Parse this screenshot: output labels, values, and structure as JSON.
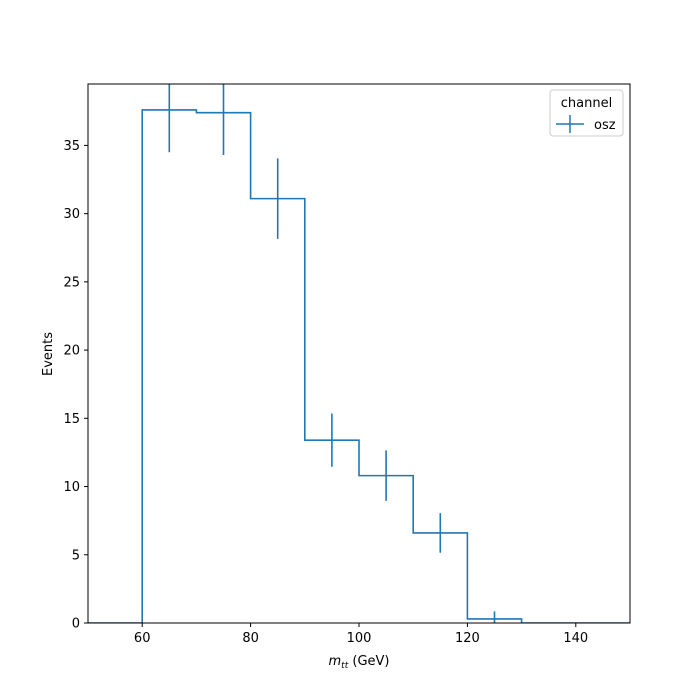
{
  "chart_data": {
    "type": "histogram-step",
    "xlabel_math": "m",
    "xlabel_sub": "tt",
    "xlabel_unit": "(GeV)",
    "ylabel": "Events",
    "xlim": [
      50,
      150
    ],
    "ylim": [
      0,
      39.5
    ],
    "x_ticks": [
      60,
      80,
      100,
      120,
      140
    ],
    "y_ticks": [
      0,
      5,
      10,
      15,
      20,
      25,
      30,
      35
    ],
    "bin_edges": [
      50,
      60,
      70,
      80,
      90,
      100,
      110,
      120,
      130,
      140,
      150
    ],
    "series": [
      {
        "name": "osz",
        "color": "#1f77b4",
        "values": [
          0,
          37.6,
          37.4,
          31.1,
          13.4,
          10.8,
          6.6,
          0.3,
          0,
          0
        ],
        "errors": [
          0,
          3.1,
          3.1,
          2.95,
          1.95,
          1.85,
          1.45,
          0.55,
          0,
          0
        ]
      }
    ],
    "legend": {
      "title": "channel",
      "position": "top-right"
    },
    "grid": false
  }
}
